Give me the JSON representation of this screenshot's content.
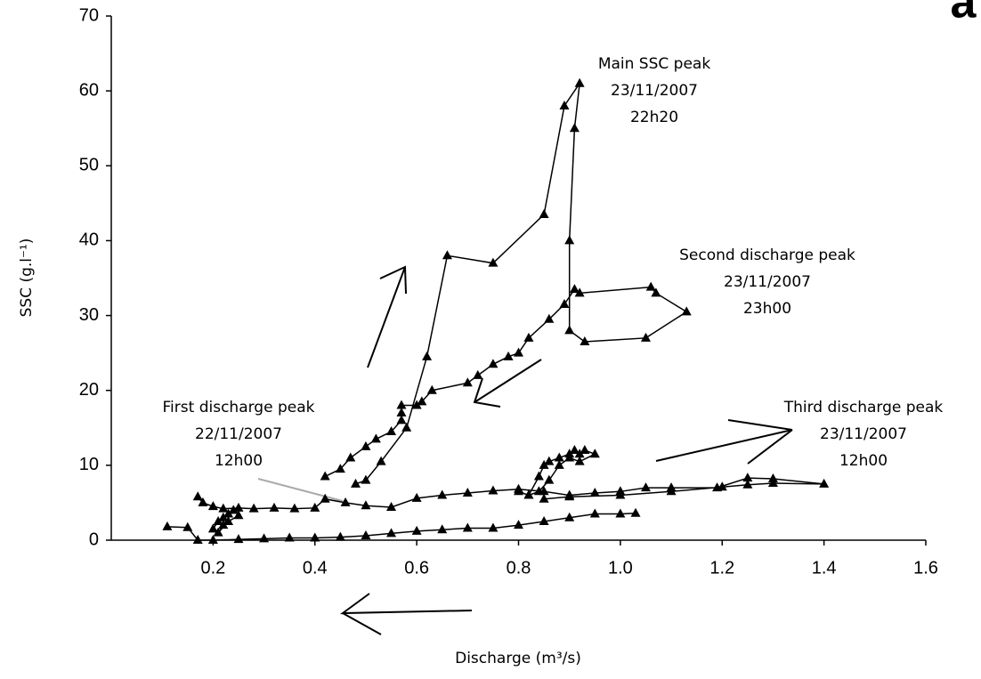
{
  "chart_data": {
    "type": "scatter-line",
    "panel_label": "a",
    "x_label": "Discharge (m³/s)",
    "y_label": "SSC (g.l⁻¹)",
    "xlim": [
      0,
      1.6
    ],
    "ylim": [
      0,
      70
    ],
    "xticks": [
      0.2,
      0.4,
      0.6,
      0.8,
      {
        "value": 1,
        "label": "1.0"
      },
      1.2,
      1.4,
      1.6
    ],
    "yticks": [
      0,
      10,
      20,
      30,
      40,
      50,
      60,
      70
    ],
    "series": [
      {
        "color": "#000000",
        "x": [
          0.42,
          0.45,
          0.47,
          0.5,
          0.52,
          0.55,
          0.57,
          0.57,
          0.57,
          0.6,
          0.61,
          0.63,
          0.7,
          0.72,
          0.75,
          0.78,
          0.8,
          0.82,
          0.86,
          0.89,
          0.91,
          0.92,
          1.06,
          1.07,
          1.13,
          1.05,
          0.93,
          0.9,
          0.9,
          0.91,
          0.92,
          0.89,
          0.85,
          0.75,
          0.66,
          0.62,
          0.58,
          0.53,
          0.5,
          0.48
        ],
        "values": [
          8.5,
          9.5,
          11,
          12.5,
          13.5,
          14.5,
          16,
          17,
          18,
          18,
          18.5,
          20,
          21,
          22,
          23.5,
          24.5,
          25,
          27,
          29.5,
          31.5,
          33.5,
          33,
          33.8,
          33,
          30.5,
          27,
          26.5,
          28,
          40,
          55,
          61,
          58,
          43.5,
          37,
          38,
          24.5,
          15,
          10.5,
          8,
          7.5
        ]
      },
      {
        "color": "#000000",
        "x": [
          0.82,
          0.84,
          0.85,
          0.86,
          0.88,
          0.9,
          0.91,
          0.92,
          0.93,
          0.95,
          0.92,
          0.9,
          0.88,
          0.86,
          0.84,
          0.82,
          0.8
        ],
        "values": [
          6,
          8.5,
          10,
          10.5,
          11,
          11.5,
          12,
          11.5,
          12,
          11.5,
          10.5,
          11,
          10,
          8,
          6.5,
          6,
          6.5
        ]
      },
      {
        "color": "#000000",
        "x": [
          0.17,
          0.18,
          0.2,
          0.22,
          0.25,
          0.28,
          0.32,
          0.36,
          0.4,
          0.42,
          0.46,
          0.5,
          0.55,
          0.6,
          0.65,
          0.7,
          0.75,
          0.8,
          0.85,
          0.9,
          0.95,
          1.0,
          1.05,
          1.1,
          1.19,
          1.25,
          1.3,
          1.4,
          1.3,
          1.25,
          1.2,
          1.1,
          1.0,
          0.9,
          0.85
        ],
        "values": [
          5.8,
          5,
          4.5,
          4.2,
          4.3,
          4.2,
          4.3,
          4.2,
          4.3,
          5.5,
          5,
          4.6,
          4.4,
          5.6,
          6,
          6.3,
          6.6,
          6.8,
          6.5,
          6,
          6.3,
          6.5,
          7,
          7,
          7,
          8.3,
          8.2,
          7.5,
          7.6,
          7.4,
          7.1,
          6.5,
          6,
          5.8,
          5.5
        ]
      },
      {
        "color": "#000000",
        "x": [
          0.11,
          0.15,
          0.17,
          0.2,
          0.25,
          0.3,
          0.35,
          0.4,
          0.45,
          0.5,
          0.55,
          0.6,
          0.65,
          0.7,
          0.75,
          0.8,
          0.85,
          0.9,
          0.95,
          1.0,
          1.03
        ],
        "values": [
          1.8,
          1.7,
          0,
          0,
          0.1,
          0.2,
          0.3,
          0.3,
          0.4,
          0.6,
          0.9,
          1.2,
          1.4,
          1.6,
          1.6,
          2,
          2.5,
          3,
          3.5,
          3.5,
          3.6
        ]
      },
      {
        "color": "#000000",
        "x": [
          0.2,
          0.21,
          0.22,
          0.23,
          0.24,
          0.22,
          0.21,
          0.23,
          0.25
        ],
        "values": [
          1.5,
          2.5,
          3,
          3.5,
          4,
          2,
          1,
          2.5,
          3.3
        ]
      }
    ],
    "annotations": [
      {
        "lines": [
          "Main SSC peak",
          "23/11/2007",
          "22h20"
        ]
      },
      {
        "lines": [
          "Second discharge peak",
          "23/11/2007",
          "23h00"
        ]
      },
      {
        "lines": [
          "First discharge peak",
          "22/11/2007",
          "12h00"
        ]
      },
      {
        "lines": [
          "Third discharge peak",
          "23/11/2007",
          "12h00"
        ]
      }
    ]
  }
}
